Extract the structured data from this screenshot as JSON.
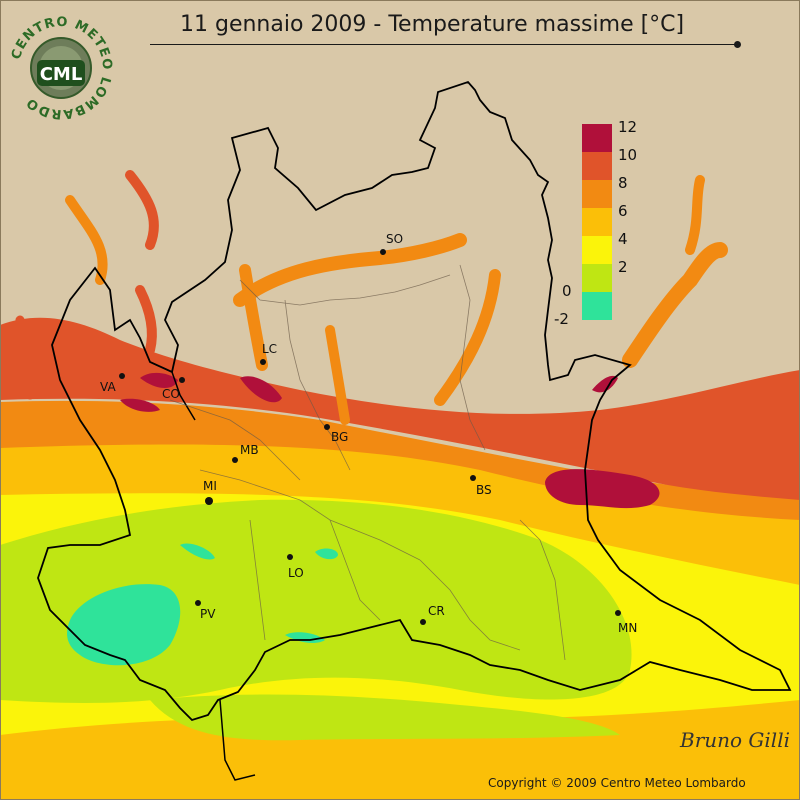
{
  "title": "11 gennaio 2009 - Temperature massime [°C]",
  "logo": {
    "ring_text": "CENTRO METEO LOMBARDO",
    "abbr": "CML"
  },
  "cities": [
    {
      "id": "SO",
      "label": "SO"
    },
    {
      "id": "LC",
      "label": "LC"
    },
    {
      "id": "VA",
      "label": "VA"
    },
    {
      "id": "CO",
      "label": "CO"
    },
    {
      "id": "BG",
      "label": "BG"
    },
    {
      "id": "MB",
      "label": "MB"
    },
    {
      "id": "MI",
      "label": "MI"
    },
    {
      "id": "BS",
      "label": "BS"
    },
    {
      "id": "LO",
      "label": "LO"
    },
    {
      "id": "PV",
      "label": "PV"
    },
    {
      "id": "CR",
      "label": "CR"
    },
    {
      "id": "MN",
      "label": "MN"
    }
  ],
  "legend": {
    "labels": [
      "12",
      "10",
      "8",
      "6",
      "4",
      "2",
      "0",
      "-2"
    ],
    "colors": [
      "#b0103a",
      "#e0542a",
      "#f28a12",
      "#fbbf08",
      "#fbf40a",
      "#bfe613",
      "#2fe39a"
    ]
  },
  "background_color": "#d9c8a8",
  "signature": "Bruno Gilli",
  "copyright": "Copyright © 2009 Centro Meteo Lombardo"
}
